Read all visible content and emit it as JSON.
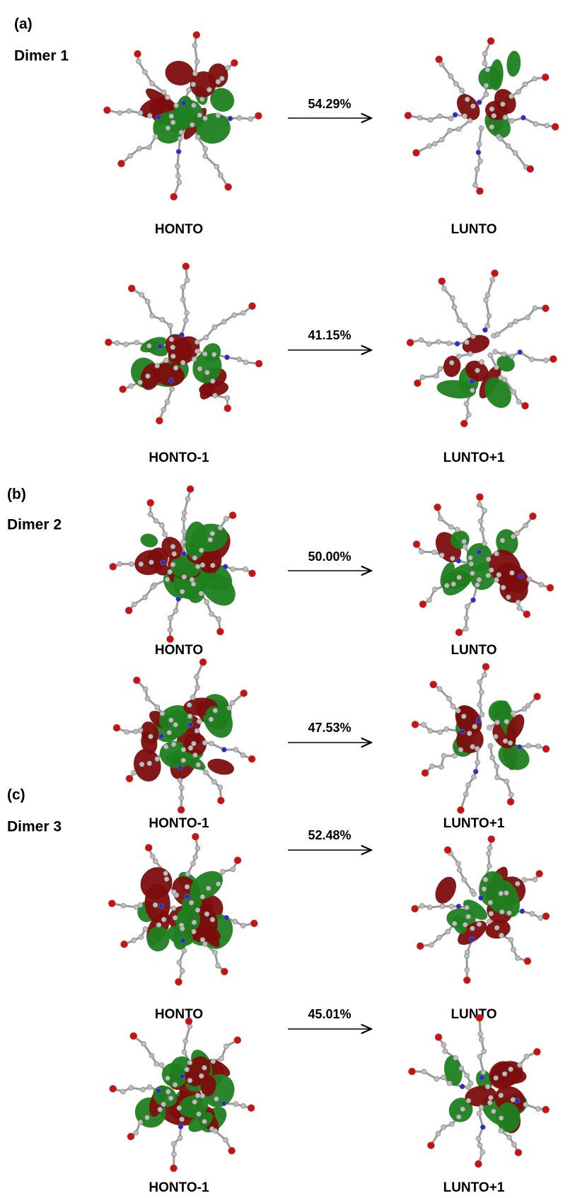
{
  "panels": [
    {
      "label": "(a)",
      "name": "Dimer 1",
      "transitions": [
        {
          "from": "HONTO",
          "to": "LUNTO",
          "percent": "54.29%"
        },
        {
          "from": "HONTO-1",
          "to": "LUNTO+1",
          "percent": "41.15%"
        }
      ]
    },
    {
      "label": "(b)",
      "name": "Dimer 2",
      "transitions": [
        {
          "from": "HONTO",
          "to": "LUNTO",
          "percent": "50.00%"
        },
        {
          "from": "HONTO-1",
          "to": "LUNTO+1",
          "percent": "47.53%"
        }
      ]
    },
    {
      "label": "(c)",
      "name": "Dimer 3",
      "transitions": [
        {
          "from": "HONTO",
          "to": "LUNTO",
          "percent": "52.48%"
        },
        {
          "from": "HONTO-1",
          "to": "LUNTO+1",
          "percent": "45.01%"
        }
      ]
    }
  ]
}
